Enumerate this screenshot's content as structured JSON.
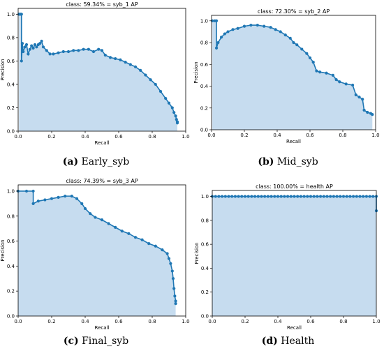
{
  "chart_data": [
    {
      "type": "area",
      "title": "class: 59.34% = syb_1 AP",
      "xlabel": "Recall",
      "ylabel": "Precision",
      "xlim": [
        0,
        1
      ],
      "ylim": [
        0,
        1.05
      ],
      "xticks": [
        "0.0",
        "0.2",
        "0.4",
        "0.6",
        "0.8",
        "1.0"
      ],
      "yticks": [
        "0.0",
        "0.2",
        "0.4",
        "0.6",
        "0.8",
        "1.0"
      ],
      "caption_letter": "(a)",
      "caption_text": "Early_syb",
      "series": [
        {
          "color": "#1f77b4",
          "x": [
            0.005,
            0.01,
            0.015,
            0.02,
            0.02,
            0.025,
            0.03,
            0.04,
            0.05,
            0.06,
            0.07,
            0.08,
            0.09,
            0.1,
            0.11,
            0.12,
            0.13,
            0.14,
            0.15,
            0.17,
            0.19,
            0.21,
            0.24,
            0.27,
            0.3,
            0.33,
            0.36,
            0.39,
            0.42,
            0.45,
            0.48,
            0.5,
            0.52,
            0.55,
            0.58,
            0.61,
            0.64,
            0.67,
            0.7,
            0.73,
            0.76,
            0.79,
            0.82,
            0.85,
            0.88,
            0.9,
            0.92,
            0.93,
            0.94,
            0.945,
            0.95,
            0.95
          ],
          "y": [
            1.0,
            1.0,
            1.0,
            1.0,
            0.6,
            0.75,
            0.68,
            0.72,
            0.74,
            0.66,
            0.7,
            0.73,
            0.71,
            0.74,
            0.72,
            0.74,
            0.75,
            0.77,
            0.72,
            0.69,
            0.66,
            0.66,
            0.67,
            0.68,
            0.68,
            0.69,
            0.69,
            0.7,
            0.7,
            0.68,
            0.7,
            0.69,
            0.65,
            0.63,
            0.62,
            0.61,
            0.59,
            0.57,
            0.55,
            0.52,
            0.48,
            0.44,
            0.4,
            0.34,
            0.28,
            0.24,
            0.2,
            0.16,
            0.13,
            0.1,
            0.08,
            0.07
          ]
        }
      ]
    },
    {
      "type": "area",
      "title": "class: 72.30% = syb_2 AP",
      "xlabel": "Recall",
      "ylabel": "Precision",
      "xlim": [
        0,
        1
      ],
      "ylim": [
        0,
        1.05
      ],
      "xticks": [
        "0.0",
        "0.2",
        "0.4",
        "0.6",
        "0.8",
        "1.0"
      ],
      "yticks": [
        "0.0",
        "0.2",
        "0.4",
        "0.6",
        "0.8",
        "1.0"
      ],
      "caption_letter": "(b)",
      "caption_text": "Mid_syb",
      "series": [
        {
          "color": "#1f77b4",
          "x": [
            0.005,
            0.02,
            0.03,
            0.03,
            0.04,
            0.06,
            0.08,
            0.1,
            0.13,
            0.16,
            0.2,
            0.24,
            0.28,
            0.32,
            0.36,
            0.39,
            0.42,
            0.45,
            0.48,
            0.5,
            0.52,
            0.55,
            0.58,
            0.6,
            0.62,
            0.64,
            0.66,
            0.7,
            0.74,
            0.76,
            0.78,
            0.82,
            0.86,
            0.88,
            0.9,
            0.92,
            0.93,
            0.95,
            0.97,
            0.98
          ],
          "y": [
            1.0,
            1.0,
            1.0,
            0.75,
            0.8,
            0.85,
            0.88,
            0.9,
            0.92,
            0.93,
            0.95,
            0.96,
            0.96,
            0.95,
            0.94,
            0.92,
            0.9,
            0.87,
            0.84,
            0.8,
            0.78,
            0.74,
            0.7,
            0.66,
            0.62,
            0.54,
            0.53,
            0.52,
            0.5,
            0.46,
            0.44,
            0.42,
            0.41,
            0.32,
            0.3,
            0.28,
            0.18,
            0.16,
            0.15,
            0.14
          ]
        }
      ]
    },
    {
      "type": "area",
      "title": "class: 74.39% = syb_3 AP",
      "xlabel": "Recall",
      "ylabel": "Precision",
      "xlim": [
        0,
        1
      ],
      "ylim": [
        0,
        1.05
      ],
      "xticks": [
        "0.0",
        "0.2",
        "0.4",
        "0.6",
        "0.8",
        "1.0"
      ],
      "yticks": [
        "0.0",
        "0.2",
        "0.4",
        "0.6",
        "0.8",
        "1.0"
      ],
      "caption_letter": "(c)",
      "caption_text": "Final_syb",
      "series": [
        {
          "color": "#1f77b4",
          "x": [
            0.0,
            0.05,
            0.09,
            0.09,
            0.12,
            0.16,
            0.2,
            0.24,
            0.28,
            0.32,
            0.35,
            0.38,
            0.4,
            0.43,
            0.46,
            0.5,
            0.54,
            0.58,
            0.62,
            0.66,
            0.7,
            0.74,
            0.78,
            0.82,
            0.86,
            0.89,
            0.9,
            0.91,
            0.92,
            0.925,
            0.93,
            0.935,
            0.94,
            0.94
          ],
          "y": [
            1.0,
            1.0,
            1.0,
            0.9,
            0.92,
            0.93,
            0.94,
            0.95,
            0.96,
            0.96,
            0.94,
            0.9,
            0.86,
            0.82,
            0.79,
            0.77,
            0.74,
            0.71,
            0.68,
            0.66,
            0.63,
            0.61,
            0.58,
            0.56,
            0.53,
            0.5,
            0.46,
            0.42,
            0.36,
            0.3,
            0.22,
            0.16,
            0.12,
            0.1
          ]
        }
      ]
    },
    {
      "type": "area",
      "title": "class: 100.00% = health AP",
      "xlabel": "Recall",
      "ylabel": "Precision",
      "xlim": [
        0,
        1
      ],
      "ylim": [
        0,
        1.05
      ],
      "xticks": [
        "0.0",
        "0.2",
        "0.4",
        "0.6",
        "0.8",
        "1.0"
      ],
      "yticks": [
        "0.0",
        "0.2",
        "0.4",
        "0.6",
        "0.8",
        "1.0"
      ],
      "caption_letter": "(d)",
      "caption_text": "Health",
      "series": [
        {
          "color": "#1f77b4",
          "x": [
            0.0,
            0.02,
            0.04,
            0.06,
            0.08,
            0.1,
            0.12,
            0.14,
            0.16,
            0.18,
            0.2,
            0.22,
            0.24,
            0.26,
            0.28,
            0.3,
            0.32,
            0.34,
            0.36,
            0.38,
            0.4,
            0.42,
            0.44,
            0.46,
            0.48,
            0.5,
            0.52,
            0.54,
            0.56,
            0.58,
            0.6,
            0.62,
            0.64,
            0.66,
            0.68,
            0.7,
            0.72,
            0.74,
            0.76,
            0.78,
            0.8,
            0.82,
            0.84,
            0.86,
            0.88,
            0.9,
            0.92,
            0.94,
            0.96,
            0.98,
            1.0,
            1.0
          ],
          "y": [
            1.0,
            1.0,
            1.0,
            1.0,
            1.0,
            1.0,
            1.0,
            1.0,
            1.0,
            1.0,
            1.0,
            1.0,
            1.0,
            1.0,
            1.0,
            1.0,
            1.0,
            1.0,
            1.0,
            1.0,
            1.0,
            1.0,
            1.0,
            1.0,
            1.0,
            1.0,
            1.0,
            1.0,
            1.0,
            1.0,
            1.0,
            1.0,
            1.0,
            1.0,
            1.0,
            1.0,
            1.0,
            1.0,
            1.0,
            1.0,
            1.0,
            1.0,
            1.0,
            1.0,
            1.0,
            1.0,
            1.0,
            1.0,
            1.0,
            1.0,
            1.0,
            0.88
          ]
        }
      ]
    }
  ],
  "colors": {
    "line": "#1f77b4",
    "fill": "#c6dcef"
  }
}
